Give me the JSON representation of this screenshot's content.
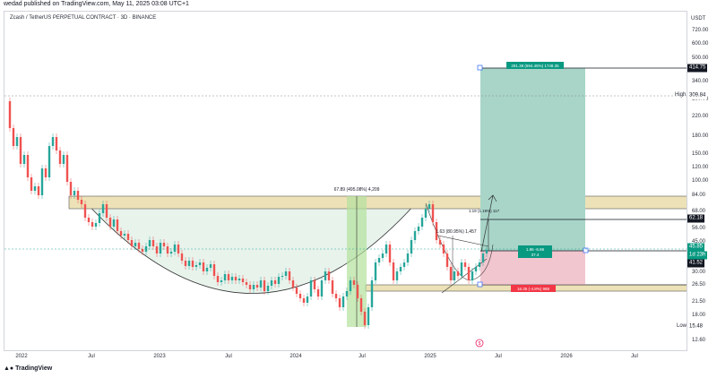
{
  "header": {
    "published_text": "wedad published on TradingView.com, May 11, 2025 03:08 UTC+1"
  },
  "chart": {
    "symbol_title": "Zcash / TetherUS PERPETUAL CONTRACT · 3D · BINANCE",
    "price_axis_unit": "USDT",
    "price_ticks": [
      "720.00",
      "600.00",
      "500.00",
      "340.00",
      "280.00",
      "220.00",
      "180.00",
      "150.00",
      "120.00",
      "100.00",
      "84.00",
      "68.00",
      "56.00",
      "45.00",
      "36.00",
      "30.00",
      "26.50",
      "21.50",
      "18.00",
      "12.60"
    ],
    "price_tags": {
      "target": "414.75",
      "high_label": "High",
      "high_value": "309.84",
      "level_62": "62.18",
      "current": "45.85",
      "countdown": "1d 23h",
      "entry": "41.52",
      "low_label": "Low",
      "low_value": "15.48"
    },
    "time_ticks": [
      "2022",
      "Jul",
      "2023",
      "Jul",
      "2024",
      "Jul",
      "2025",
      "Jul",
      "2026",
      "Jul"
    ],
    "annotations": {
      "range_measure": "67.89 (495.08%) 4,209",
      "swing_measure": "1.63 (80.95%) 1,457",
      "upper_measure": "1.19 (1.19%) 117",
      "target_box": "291.38 (694.45%) 1748.35",
      "risk_reward": "1.86 -6.86",
      "rr_ratio": "37.4",
      "stop_box": "16.35 (-4.8%) 988"
    },
    "colors": {
      "bull": "#26a69a",
      "bear": "#ef5350",
      "profit_fill": "#a8d5c8",
      "loss_fill": "#f2c6cf",
      "resistance_fill": "#ede2b7",
      "cup_fill": "#e6f2ea",
      "highlight_green": "#b4e19c"
    }
  },
  "footer": {
    "brand": "TradingView"
  }
}
